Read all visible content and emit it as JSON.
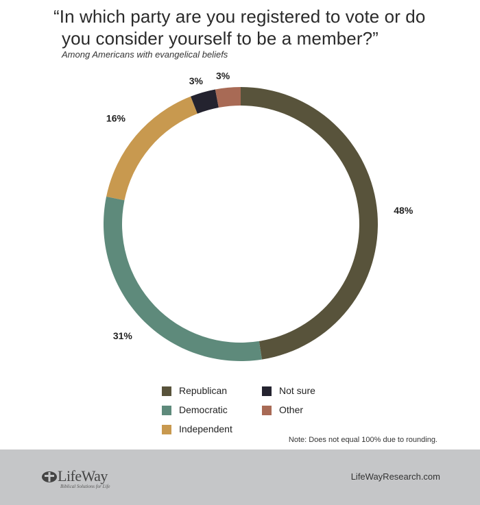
{
  "header": {
    "title_line1": "“In which party are you registered to vote or do",
    "title_line2": "you consider yourself to be a member?”",
    "subtitle": "Among Americans with evangelical beliefs"
  },
  "chart_data": {
    "type": "pie",
    "donut": true,
    "start": "top",
    "direction": "clockwise",
    "categories": [
      "Republican",
      "Democratic",
      "Independent",
      "Not sure",
      "Other"
    ],
    "values": [
      48,
      31,
      16,
      3,
      3
    ],
    "labels": [
      "48%",
      "31%",
      "16%",
      "3%",
      "3%"
    ],
    "colors": [
      "#58533b",
      "#5e8a7b",
      "#c8994f",
      "#24232f",
      "#a86a55"
    ],
    "legend_placement": "bottom"
  },
  "legend": {
    "items": [
      {
        "label": "Republican",
        "color": "#58533b"
      },
      {
        "label": "Democratic",
        "color": "#5e8a7b"
      },
      {
        "label": "Independent",
        "color": "#c8994f"
      },
      {
        "label": "Not sure",
        "color": "#24232f"
      },
      {
        "label": "Other",
        "color": "#a86a55"
      }
    ]
  },
  "note": "Note: Does not equal 100% due to rounding.",
  "footer": {
    "logo_text": "LifeWay",
    "logo_tagline": "Biblical Solutions for Life",
    "site": "LifeWayResearch.com",
    "background": "#c5c6c8"
  }
}
